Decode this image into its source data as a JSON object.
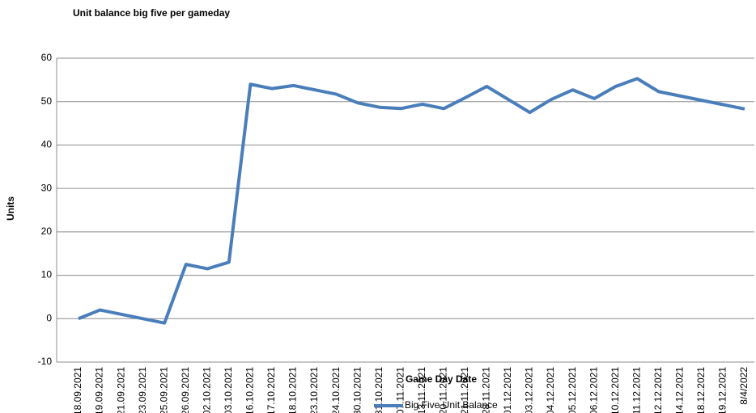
{
  "chart_data": {
    "type": "line",
    "title": "Unit balance big five per gameday",
    "x_label": "Game Day Date",
    "y_label": "Units",
    "categories": [
      "18.09.2021",
      "19.09.2021",
      "21.09.2021",
      "23.09.2021",
      "25.09.2021",
      "26.09.2021",
      "02.10.2021",
      "03.10.2021",
      "16.10.2021",
      "17.10.2021",
      "18.10.2021",
      "23.10.2021",
      "24.10.2021",
      "30.10.2021",
      "31.10.2021",
      "07.11.2021",
      "13.11.2021",
      "20.11.2021",
      "21.11.2021",
      "28.11.2021",
      "01.12.2021",
      "03.12.2021",
      "04.12.2021",
      "05.12.2021",
      "06.12.2021",
      "10.12.2021",
      "11.12.2021",
      "12.12.2021",
      "14.12.2021",
      "18.12.2021",
      "19.12.2021",
      "8/4/2022"
    ],
    "series": [
      {
        "name": "Big Five Unit Balance",
        "color": "#4a7ebb",
        "values": [
          0,
          2,
          1,
          0,
          -1,
          12.5,
          11.5,
          13,
          54,
          53,
          53.7,
          52.7,
          51.7,
          49.7,
          48.7,
          48.4,
          49.4,
          48.4,
          50.9,
          53.5,
          50.5,
          47.5,
          50.5,
          52.7,
          50.7,
          53.5,
          55.3,
          52.3,
          51.3,
          50.3,
          49.3,
          48.3
        ]
      }
    ],
    "ylim": [
      -10,
      60
    ],
    "yticks": [
      -10,
      0,
      10,
      20,
      30,
      40,
      50,
      60
    ],
    "grid": true,
    "legend": "bottom"
  }
}
